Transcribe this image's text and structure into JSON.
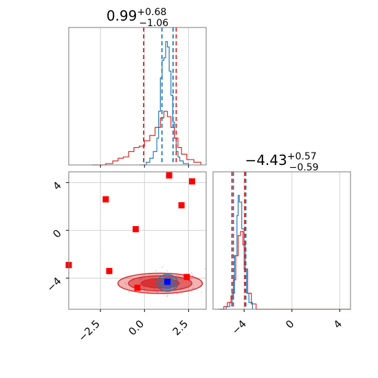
{
  "chart_data": [
    {
      "type": "histogram",
      "panel": "upper-left marginal",
      "title": {
        "base": "0.99",
        "sup": "+0.68",
        "sub": "−1.06"
      },
      "xlim": [
        -4.3,
        3.5
      ],
      "grid": true,
      "series": [
        {
          "name": "",
          "color": "#1f77b4",
          "x": [
            -0.3,
            0.1,
            0.3,
            0.5,
            0.7,
            0.8,
            0.9,
            1.0,
            1.1,
            1.2,
            1.3,
            1.4,
            1.5,
            1.6,
            1.7,
            1.8,
            1.9,
            2.0,
            2.2,
            2.5
          ],
          "y": [
            0.0,
            0.02,
            0.05,
            0.1,
            0.2,
            0.4,
            0.65,
            0.78,
            0.8,
            0.92,
            0.88,
            0.7,
            0.52,
            0.32,
            0.2,
            0.1,
            0.06,
            0.03,
            0.01,
            0.0
          ]
        },
        {
          "name": "",
          "color": "#d62728",
          "x": [
            -3.0,
            -2.2,
            -1.8,
            -1.5,
            -1.2,
            -0.9,
            -0.6,
            -0.3,
            0.0,
            0.3,
            0.6,
            0.9,
            1.1,
            1.3,
            1.5,
            1.7,
            1.9,
            2.1,
            2.4,
            2.8,
            3.2
          ],
          "y": [
            0.0,
            0.01,
            0.03,
            0.05,
            0.06,
            0.1,
            0.13,
            0.14,
            0.18,
            0.22,
            0.28,
            0.35,
            0.4,
            0.36,
            0.28,
            0.2,
            0.13,
            0.08,
            0.04,
            0.02,
            0.0
          ]
        }
      ],
      "vlines": [
        {
          "x": -0.05,
          "color": "#d62728"
        },
        {
          "x": 0.99,
          "color": "#1f77b4"
        },
        {
          "x": 1.62,
          "color": "#1f77b4"
        },
        {
          "x": 1.8,
          "color": "#d62728"
        }
      ]
    },
    {
      "type": "contour",
      "panel": "lower-left 2D",
      "xlim": [
        -4.3,
        3.5
      ],
      "ylim": [
        -6.6,
        4.9
      ],
      "xticks": [
        -2.5,
        0.0,
        2.5
      ],
      "xtick_labels": [
        "−2.5",
        "0.0",
        "2.5"
      ],
      "yticks": [
        -4,
        0,
        4
      ],
      "ytick_labels": [
        "−4",
        "0",
        "4"
      ],
      "grid": true,
      "contours": [
        {
          "name": "",
          "color": "#d62728",
          "center": [
            0.99,
            -4.43
          ],
          "spread": [
            2.4,
            0.85
          ]
        },
        {
          "name": "",
          "color": "#1f77b4",
          "center": [
            1.3,
            -4.4
          ],
          "spread": [
            0.6,
            0.7
          ]
        }
      ],
      "red_points": [
        [
          -4.3,
          -2.9
        ],
        [
          -2.2,
          2.6
        ],
        [
          -2.0,
          -3.4
        ],
        [
          -0.5,
          0.1
        ],
        [
          -0.4,
          -4.8
        ],
        [
          1.4,
          4.6
        ],
        [
          2.1,
          2.1
        ],
        [
          2.4,
          -3.9
        ],
        [
          2.7,
          4.1
        ]
      ],
      "blue_point": [
        1.3,
        -4.3
      ]
    },
    {
      "type": "histogram",
      "panel": "lower-right marginal",
      "title": {
        "base": "−4.43",
        "sup": "+0.57",
        "sub": "−0.59"
      },
      "xlim": [
        -6.6,
        4.9
      ],
      "xticks": [
        -4,
        0,
        4
      ],
      "xtick_labels": [
        "−4",
        "0",
        "4"
      ],
      "grid": true,
      "series": [
        {
          "name": "",
          "color": "#1f77b4",
          "x": [
            -6.0,
            -5.5,
            -5.2,
            -5.0,
            -4.8,
            -4.6,
            -4.5,
            -4.4,
            -4.2,
            -4.0,
            -3.8,
            -3.6,
            -3.3
          ],
          "y": [
            0.0,
            0.02,
            0.05,
            0.12,
            0.4,
            0.7,
            0.85,
            0.8,
            0.6,
            0.3,
            0.12,
            0.05,
            0.0
          ]
        },
        {
          "name": "",
          "color": "#d62728",
          "x": [
            -6.2,
            -5.7,
            -5.4,
            -5.1,
            -4.9,
            -4.7,
            -4.5,
            -4.3,
            -4.1,
            -3.9,
            -3.7,
            -3.4,
            -3.0,
            4.0,
            4.9
          ],
          "y": [
            0.0,
            0.02,
            0.05,
            0.1,
            0.22,
            0.4,
            0.55,
            0.58,
            0.48,
            0.3,
            0.12,
            0.04,
            0.0,
            0.0,
            0.0
          ]
        }
      ],
      "vlines": [
        {
          "x": -5.02,
          "color": "#d62728"
        },
        {
          "x": -4.9,
          "color": "#1f77b4"
        },
        {
          "x": -3.86,
          "color": "#1f77b4"
        },
        {
          "x": -3.95,
          "color": "#d62728"
        }
      ]
    }
  ]
}
